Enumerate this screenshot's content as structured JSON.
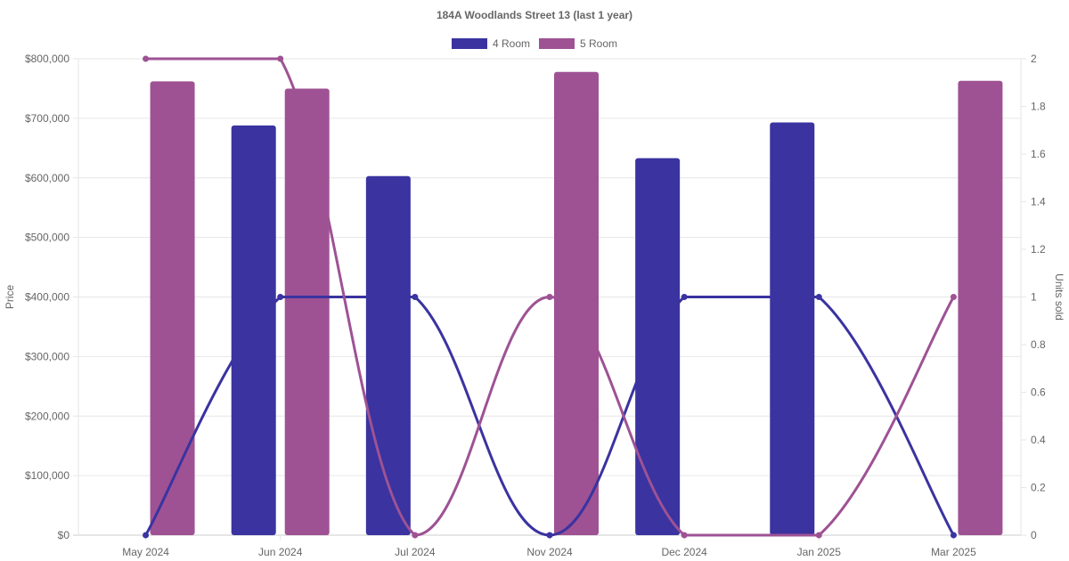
{
  "chart_data": {
    "type": "bar",
    "title": "184A Woodlands Street 13 (last 1 year)",
    "categories": [
      "May 2024",
      "Jun 2024",
      "Jul 2024",
      "Nov 2024",
      "Dec 2024",
      "Jan 2025",
      "Mar 2025"
    ],
    "ylabel": "Price",
    "y2label": "Units sold",
    "ylim": [
      0,
      800000
    ],
    "y2lim": [
      0,
      2
    ],
    "yticks": [
      "$0",
      "$100,000",
      "$200,000",
      "$300,000",
      "$400,000",
      "$500,000",
      "$600,000",
      "$700,000",
      "$800,000"
    ],
    "y2ticks": [
      "0",
      "0.2",
      "0.4",
      "0.6",
      "0.8",
      "1",
      "1.2",
      "1.4",
      "1.6",
      "1.8",
      "2"
    ],
    "grid": true,
    "legend_position": "top",
    "series": [
      {
        "name": "4 Room",
        "color": "#3A33A0",
        "price": [
          null,
          688000,
          603000,
          null,
          633000,
          693000,
          null
        ],
        "units_sold": [
          0,
          1,
          1,
          0,
          1,
          1,
          0
        ]
      },
      {
        "name": "5 Room",
        "color": "#9E5294",
        "price": [
          762000,
          750000,
          null,
          778000,
          null,
          null,
          763000
        ],
        "units_sold": [
          2,
          2,
          0,
          1,
          0,
          0,
          1
        ]
      }
    ]
  }
}
